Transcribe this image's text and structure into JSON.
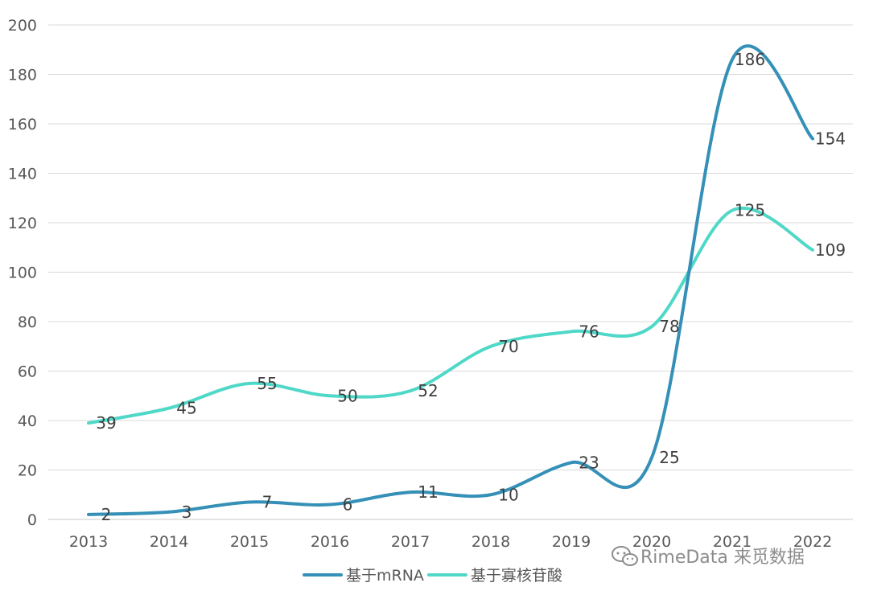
{
  "chart_data": {
    "type": "line",
    "x": [
      "2013",
      "2014",
      "2015",
      "2016",
      "2017",
      "2018",
      "2019",
      "2020",
      "2021",
      "2022"
    ],
    "ylim": [
      0,
      200
    ],
    "yticks": [
      0,
      20,
      40,
      60,
      80,
      100,
      120,
      140,
      160,
      180,
      200
    ],
    "grid": true,
    "legend_position": "bottom",
    "series": [
      {
        "name": "基于mRNA",
        "color": "#3590b8",
        "values": [
          2,
          3,
          7,
          6,
          11,
          10,
          23,
          25,
          186,
          154
        ]
      },
      {
        "name": "基于寡核苷酸",
        "color": "#4fd8c8",
        "values": [
          39,
          45,
          55,
          50,
          52,
          70,
          76,
          78,
          125,
          109
        ]
      }
    ]
  },
  "watermark": {
    "text": "RimeData 来觅数据",
    "icon": "wechat-icon"
  }
}
